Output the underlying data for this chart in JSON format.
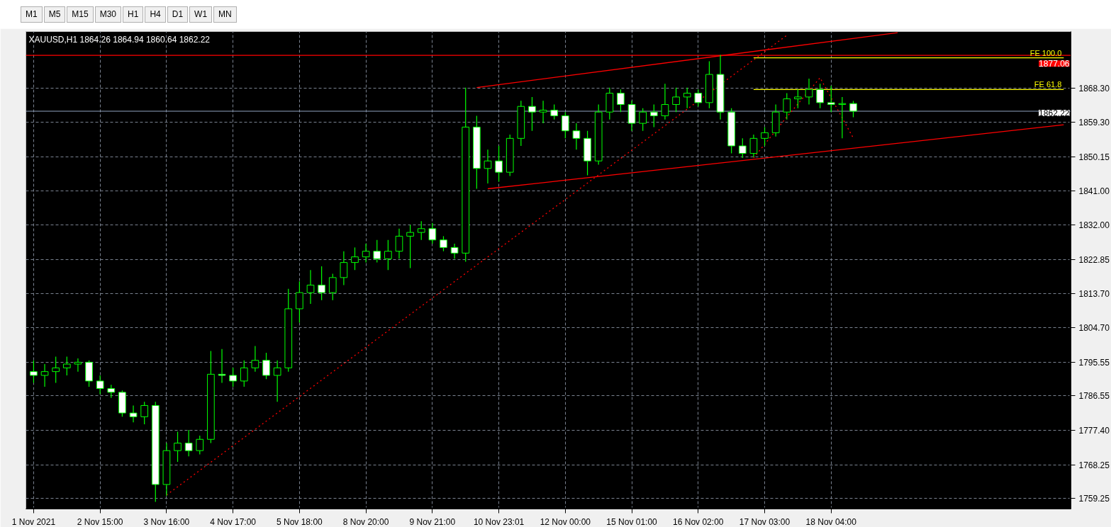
{
  "chart_data": {
    "type": "candlestick",
    "title": "XAUUSD,H1  1864.26 1864.94 1860.64 1862.22",
    "annotations": [
      "M1",
      "M5",
      "M15",
      "M30",
      "H1",
      "H4",
      "D1",
      "W1",
      "MN"
    ],
    "categories": [
      "1 Nov 2021",
      null,
      null,
      null,
      null,
      null,
      "2 Nov 15:00",
      null,
      null,
      null,
      null,
      null,
      "3 Nov 16:00",
      null,
      null,
      null,
      null,
      null,
      "4 Nov 17:00",
      null,
      null,
      null,
      null,
      null,
      "5 Nov 18:00",
      null,
      null,
      null,
      null,
      null,
      "8 Nov 20:00",
      null,
      null,
      null,
      null,
      null,
      "9 Nov 21:00",
      null,
      null,
      null,
      null,
      null,
      "10 Nov 23:01",
      null,
      null,
      null,
      null,
      null,
      "12 Nov 00:00",
      null,
      null,
      null,
      null,
      null,
      "15 Nov 01:00",
      null,
      null,
      null,
      null,
      null,
      "16 Nov 02:00",
      null,
      null,
      null,
      null,
      null,
      "17 Nov 03:00",
      null,
      null,
      null,
      null,
      null,
      "18 Nov 04:00",
      null,
      null,
      null,
      null,
      null,
      null,
      null,
      null,
      null,
      null,
      null,
      null,
      null,
      null,
      null,
      null,
      null,
      null,
      null,
      null,
      null
    ],
    "series": [
      {
        "color": "#00ff00",
        "ohlc": [
          [
            1793,
            1796,
            1790,
            1792
          ],
          [
            1792,
            1795,
            1789,
            1793
          ],
          [
            1793,
            1797,
            1790,
            1794
          ],
          [
            1794,
            1797,
            1792,
            1795
          ],
          [
            1795,
            1796.5,
            1793,
            1795.5
          ],
          [
            1795.5,
            1796,
            1789,
            1790.5
          ],
          [
            1790.5,
            1792,
            1787,
            1788.5
          ],
          [
            1788.5,
            1789.5,
            1786,
            1787.5
          ],
          [
            1787.5,
            1788,
            1781,
            1782
          ],
          [
            1782,
            1784,
            1779.5,
            1781
          ],
          [
            1781,
            1785,
            1779,
            1784
          ],
          [
            1784,
            1785,
            1758.4,
            1763
          ],
          [
            1763,
            1774,
            1760,
            1772
          ],
          [
            1772,
            1777,
            1769,
            1774
          ],
          [
            1774,
            1777.5,
            1770.5,
            1772
          ],
          [
            1772,
            1776,
            1771,
            1775
          ],
          [
            1775,
            1798.5,
            1774,
            1792.3
          ],
          [
            1792.3,
            1799,
            1790,
            1792
          ],
          [
            1792,
            1794,
            1789,
            1790.5
          ],
          [
            1790.5,
            1796,
            1789,
            1794
          ],
          [
            1794,
            1799.8,
            1793,
            1796
          ],
          [
            1796,
            1798,
            1791,
            1792
          ],
          [
            1792,
            1796,
            1785,
            1794
          ],
          [
            1794,
            1815,
            1793,
            1809.7
          ],
          [
            1809.7,
            1817,
            1806,
            1814
          ],
          [
            1814,
            1820,
            1811,
            1816
          ],
          [
            1816,
            1821,
            1812,
            1814
          ],
          [
            1814,
            1819,
            1812,
            1818
          ],
          [
            1818,
            1825,
            1816,
            1822
          ],
          [
            1822,
            1826,
            1820,
            1823.5
          ],
          [
            1823.5,
            1827,
            1822,
            1825
          ],
          [
            1825,
            1828,
            1822,
            1823
          ],
          [
            1823,
            1828,
            1820,
            1825
          ],
          [
            1825,
            1831,
            1823,
            1829
          ],
          [
            1829,
            1832,
            1820.5,
            1830
          ],
          [
            1830,
            1833,
            1828,
            1831
          ],
          [
            1831,
            1832.5,
            1827,
            1828
          ],
          [
            1828,
            1829,
            1825,
            1826
          ],
          [
            1826,
            1827,
            1823,
            1824.5
          ],
          [
            1824.5,
            1868.5,
            1822.2,
            1858
          ],
          [
            1858,
            1861,
            1841.6,
            1847
          ],
          [
            1847,
            1852,
            1843,
            1849
          ],
          [
            1849,
            1853,
            1843.5,
            1846
          ],
          [
            1846,
            1856,
            1845,
            1855
          ],
          [
            1855,
            1865,
            1853,
            1863.5
          ],
          [
            1863.5,
            1866,
            1857,
            1862
          ],
          [
            1862,
            1865,
            1859,
            1862.5
          ],
          [
            1862.5,
            1864,
            1860,
            1861
          ],
          [
            1861,
            1862,
            1855,
            1857
          ],
          [
            1857,
            1859,
            1852,
            1855
          ],
          [
            1855,
            1857,
            1845.2,
            1849
          ],
          [
            1849,
            1864,
            1848,
            1862
          ],
          [
            1862,
            1868.5,
            1860,
            1867
          ],
          [
            1867,
            1868,
            1862,
            1864
          ],
          [
            1864,
            1865,
            1857,
            1859
          ],
          [
            1859,
            1863,
            1857,
            1862
          ],
          [
            1862,
            1864,
            1858,
            1861
          ],
          [
            1861,
            1869.5,
            1860,
            1864
          ],
          [
            1864,
            1868.5,
            1862,
            1866
          ],
          [
            1866,
            1868.5,
            1863,
            1867
          ],
          [
            1867,
            1868,
            1863.5,
            1864.5
          ],
          [
            1864.5,
            1875.5,
            1863,
            1872
          ],
          [
            1872,
            1877.2,
            1860,
            1862
          ],
          [
            1862,
            1863,
            1851,
            1853
          ],
          [
            1853,
            1855,
            1849.8,
            1851
          ],
          [
            1851,
            1856,
            1850,
            1855
          ],
          [
            1855,
            1858,
            1853,
            1856.5
          ],
          [
            1856.5,
            1864,
            1855.5,
            1862
          ],
          [
            1862,
            1867,
            1860,
            1865.5
          ],
          [
            1865.5,
            1868,
            1863,
            1866
          ],
          [
            1866,
            1870.9,
            1864,
            1868
          ],
          [
            1868,
            1869.5,
            1863,
            1864.5
          ],
          [
            1864.5,
            1869,
            1862,
            1864
          ],
          [
            1864,
            1866,
            1855,
            1864.26
          ],
          [
            1864.26,
            1864.94,
            1860.64,
            1862.22
          ],
          null,
          null,
          null,
          null,
          null,
          null,
          null,
          null,
          null,
          null,
          null,
          null,
          null,
          null,
          null,
          null,
          null,
          null,
          null
        ]
      },
      {
        "type": "line",
        "color": "#ff0000",
        "line_style": "solid",
        "values": [
          null,
          null,
          null,
          null,
          null,
          null,
          null,
          null,
          null,
          null,
          null,
          null,
          null,
          null,
          null,
          null,
          null,
          null,
          null,
          null,
          null,
          null,
          null,
          null,
          null,
          null,
          null,
          null,
          null,
          null,
          null,
          null,
          null,
          null,
          null,
          null,
          null,
          null,
          null,
          null,
          1868.5,
          null,
          null,
          null,
          null,
          null,
          null,
          null,
          null,
          null,
          null,
          null,
          null,
          null,
          null,
          null,
          null,
          null,
          null,
          null,
          null,
          null,
          null,
          null,
          null,
          null,
          null,
          null,
          null,
          null,
          null,
          null,
          null,
          null,
          null,
          null,
          null,
          null,
          1883.1,
          null,
          null,
          null,
          null,
          null,
          null,
          null,
          null,
          null,
          null,
          null,
          null,
          null,
          null,
          null
        ]
      },
      {
        "type": "line",
        "color": "#ff0000",
        "line_style": "solid",
        "values": [
          null,
          null,
          null,
          null,
          null,
          null,
          null,
          null,
          null,
          null,
          null,
          null,
          null,
          null,
          null,
          null,
          null,
          null,
          null,
          null,
          null,
          null,
          null,
          null,
          null,
          null,
          null,
          null,
          null,
          null,
          null,
          null,
          null,
          null,
          null,
          null,
          null,
          null,
          null,
          null,
          null,
          1841.6,
          null,
          null,
          null,
          null,
          null,
          null,
          null,
          null,
          null,
          null,
          null,
          null,
          null,
          null,
          null,
          null,
          null,
          null,
          null,
          null,
          null,
          null,
          null,
          null,
          null,
          null,
          null,
          null,
          null,
          null,
          null,
          null,
          null,
          null,
          null,
          null,
          null,
          null,
          null,
          null,
          null,
          null,
          null,
          null,
          null,
          null,
          null,
          null,
          null,
          null,
          null,
          1858.6
        ]
      },
      {
        "type": "line",
        "color": "#ff0000",
        "line_style": "dotted",
        "values": [
          null,
          null,
          null,
          null,
          null,
          null,
          null,
          null,
          null,
          null,
          null,
          null,
          1760.2,
          null,
          null,
          null,
          null,
          null,
          null,
          null,
          null,
          null,
          null,
          null,
          null,
          null,
          null,
          null,
          null,
          null,
          null,
          null,
          null,
          null,
          null,
          null,
          null,
          null,
          null,
          null,
          null,
          null,
          null,
          null,
          null,
          null,
          null,
          null,
          null,
          null,
          null,
          null,
          null,
          null,
          null,
          null,
          null,
          null,
          null,
          null,
          null,
          null,
          null,
          null,
          null,
          null,
          null,
          null,
          1882.4,
          null,
          null,
          null,
          null,
          null,
          null,
          null,
          null,
          null,
          null,
          null,
          null,
          null,
          null,
          null,
          null,
          null,
          null,
          null,
          null,
          null,
          null,
          null,
          null,
          null
        ]
      },
      {
        "type": "line",
        "color": "#ff0000",
        "line_style": "dotted",
        "values": [
          null,
          null,
          null,
          null,
          null,
          null,
          null,
          null,
          null,
          null,
          null,
          null,
          null,
          null,
          null,
          null,
          null,
          null,
          null,
          null,
          null,
          null,
          null,
          null,
          null,
          null,
          null,
          null,
          null,
          null,
          null,
          null,
          null,
          null,
          null,
          null,
          null,
          null,
          null,
          null,
          null,
          null,
          null,
          null,
          null,
          null,
          null,
          null,
          null,
          null,
          null,
          null,
          null,
          null,
          null,
          null,
          null,
          null,
          null,
          null,
          null,
          null,
          null,
          null,
          null,
          1849.8,
          null,
          null,
          1860.7,
          null,
          null,
          1871.1,
          null,
          null,
          1855.1,
          null,
          null,
          null,
          null,
          null,
          null,
          null,
          null,
          null,
          null,
          null,
          null,
          null,
          null,
          null,
          null,
          null,
          null,
          null
        ]
      },
      {
        "type": "line",
        "name": "FE 100.0",
        "color": "#ffff00",
        "line_style": "solid",
        "values": [
          null,
          null,
          null,
          null,
          null,
          null,
          null,
          null,
          null,
          null,
          null,
          null,
          null,
          null,
          null,
          null,
          null,
          null,
          null,
          null,
          null,
          null,
          null,
          null,
          null,
          null,
          null,
          null,
          null,
          null,
          null,
          null,
          null,
          null,
          null,
          null,
          null,
          null,
          null,
          null,
          null,
          null,
          null,
          null,
          null,
          null,
          null,
          null,
          null,
          null,
          null,
          null,
          null,
          null,
          null,
          null,
          null,
          null,
          null,
          null,
          null,
          null,
          null,
          null,
          null,
          1876.4,
          null,
          null,
          null,
          null,
          null,
          null,
          null,
          null,
          null,
          null,
          null,
          null,
          null,
          null,
          null,
          null,
          null,
          null,
          null,
          null,
          null,
          null,
          null,
          null,
          null,
          null,
          null,
          1876.4
        ]
      },
      {
        "type": "line",
        "name": "FE 61.8",
        "color": "#ffff00",
        "line_style": "solid",
        "values": [
          null,
          null,
          null,
          null,
          null,
          null,
          null,
          null,
          null,
          null,
          null,
          null,
          null,
          null,
          null,
          null,
          null,
          null,
          null,
          null,
          null,
          null,
          null,
          null,
          null,
          null,
          null,
          null,
          null,
          null,
          null,
          null,
          null,
          null,
          null,
          null,
          null,
          null,
          null,
          null,
          null,
          null,
          null,
          null,
          null,
          null,
          null,
          null,
          null,
          null,
          null,
          null,
          null,
          null,
          null,
          null,
          null,
          null,
          null,
          null,
          null,
          null,
          null,
          null,
          null,
          1868.0,
          null,
          null,
          null,
          null,
          null,
          null,
          null,
          null,
          null,
          null,
          null,
          null,
          null,
          null,
          null,
          null,
          null,
          null,
          null,
          null,
          null,
          null,
          null,
          null,
          null,
          null,
          null,
          1868.0
        ]
      }
    ],
    "ref_lines": [
      {
        "axis": "y",
        "value": 1877.06,
        "label": "1877.06",
        "color": "#ff0000"
      },
      {
        "axis": "y",
        "value": 1862.22,
        "label": "1862.22",
        "color": "#8fa3bf"
      }
    ],
    "ylim": [
      1756.5,
      1883.4
    ],
    "yticks": [
      {
        "value": 1759.25,
        "label": "1759.25"
      },
      {
        "value": 1768.25,
        "label": "1768.25"
      },
      {
        "value": 1777.4,
        "label": "1777.40"
      },
      {
        "value": 1786.55,
        "label": "1786.55"
      },
      {
        "value": 1795.55,
        "label": "1795.55"
      },
      {
        "value": 1804.7,
        "label": "1804.70"
      },
      {
        "value": 1813.7,
        "label": "1813.70"
      },
      {
        "value": 1822.85,
        "label": "1822.85"
      },
      {
        "value": 1832.0,
        "label": "1832.00"
      },
      {
        "value": 1841.0,
        "label": "1841.00"
      },
      {
        "value": 1850.15,
        "label": "1850.15"
      },
      {
        "value": 1859.3,
        "label": "1859.30"
      },
      {
        "value": 1868.3,
        "label": "1868.30"
      }
    ],
    "grid": true
  }
}
